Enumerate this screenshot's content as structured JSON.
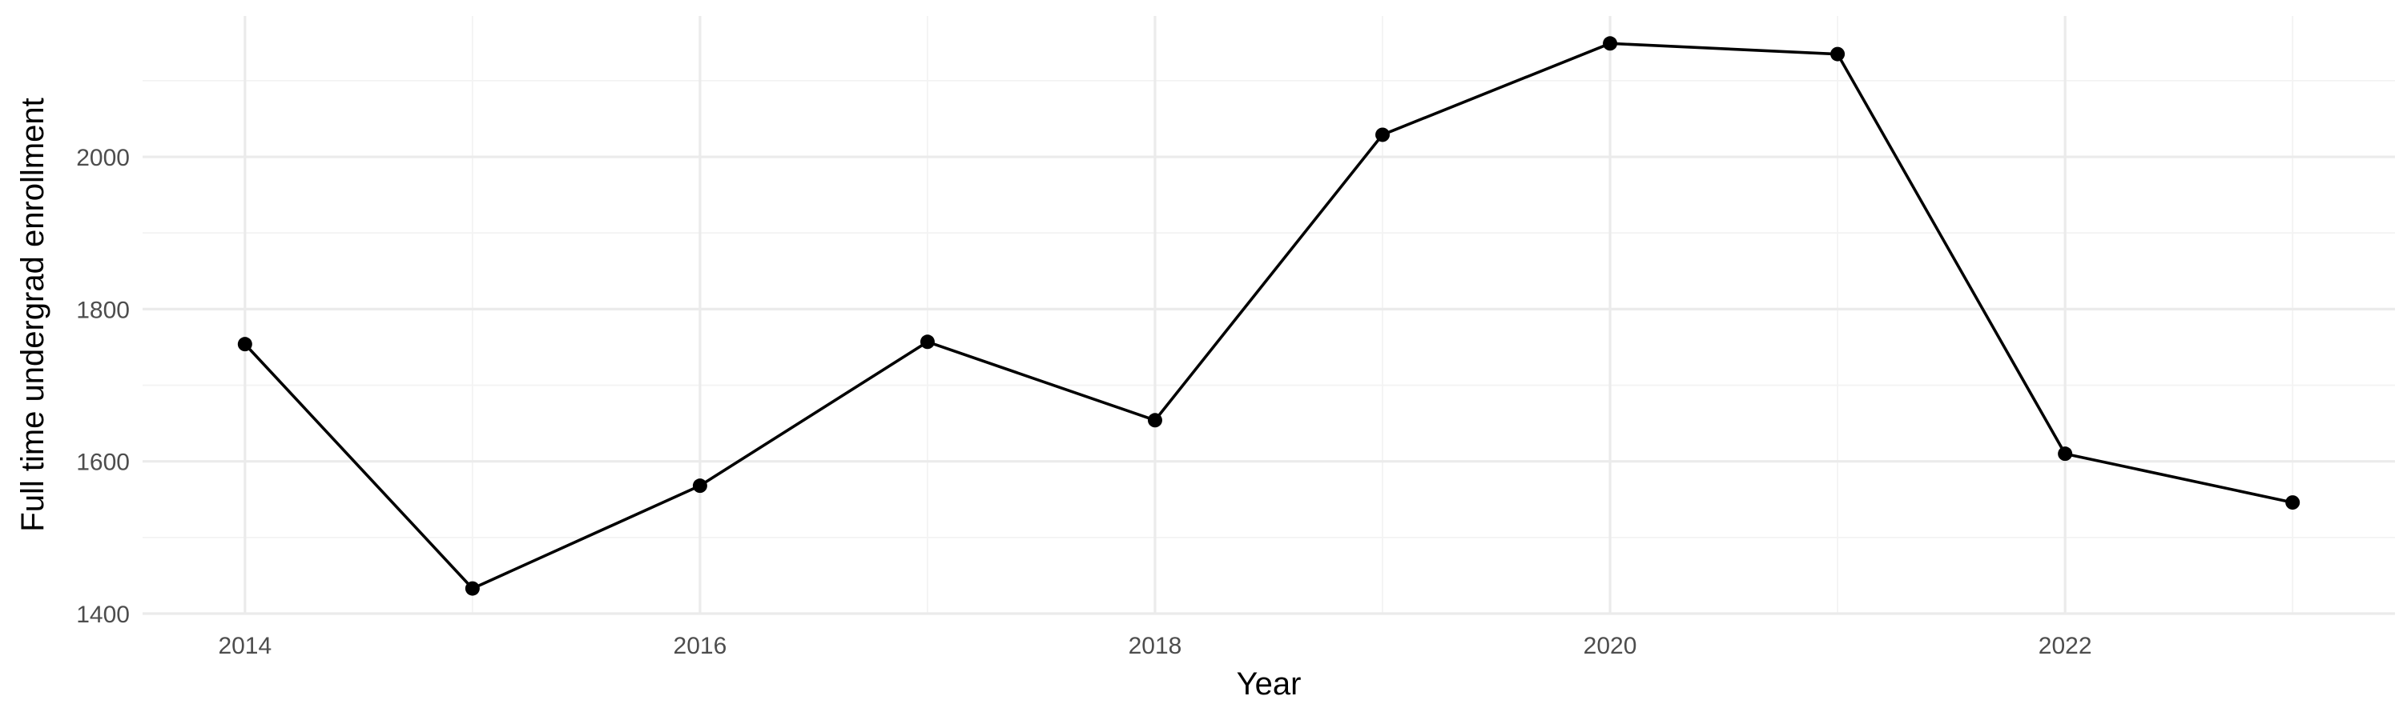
{
  "chart_data": {
    "type": "line",
    "title": "",
    "xlabel": "Year",
    "ylabel": "Full time undergrad enrollment",
    "x": [
      2014,
      2015,
      2016,
      2017,
      2018,
      2019,
      2020,
      2021,
      2022,
      2023
    ],
    "series": [
      {
        "name": "",
        "values": [
          1754,
          1433,
          1568,
          1757,
          1654,
          2029,
          2149,
          2135,
          1610,
          1546
        ]
      }
    ],
    "xlim": [
      2013.55,
      2023.45
    ],
    "ylim": [
      1400,
      2185
    ],
    "xticks": [
      2014,
      2016,
      2018,
      2020,
      2022
    ],
    "xtick_labels": [
      "2014",
      "2016",
      "2018",
      "2020",
      "2022"
    ],
    "yticks": [
      1400,
      1600,
      1800,
      2000
    ],
    "ytick_labels": [
      "1400",
      "1600",
      "1800",
      "2000"
    ],
    "grid": true,
    "legend": "none",
    "colors": {
      "line": "#000000",
      "point": "#000000",
      "grid_major": "#ebebeb",
      "grid_minor": "#f3f3f3",
      "tick_text": "#4d4d4d"
    }
  }
}
